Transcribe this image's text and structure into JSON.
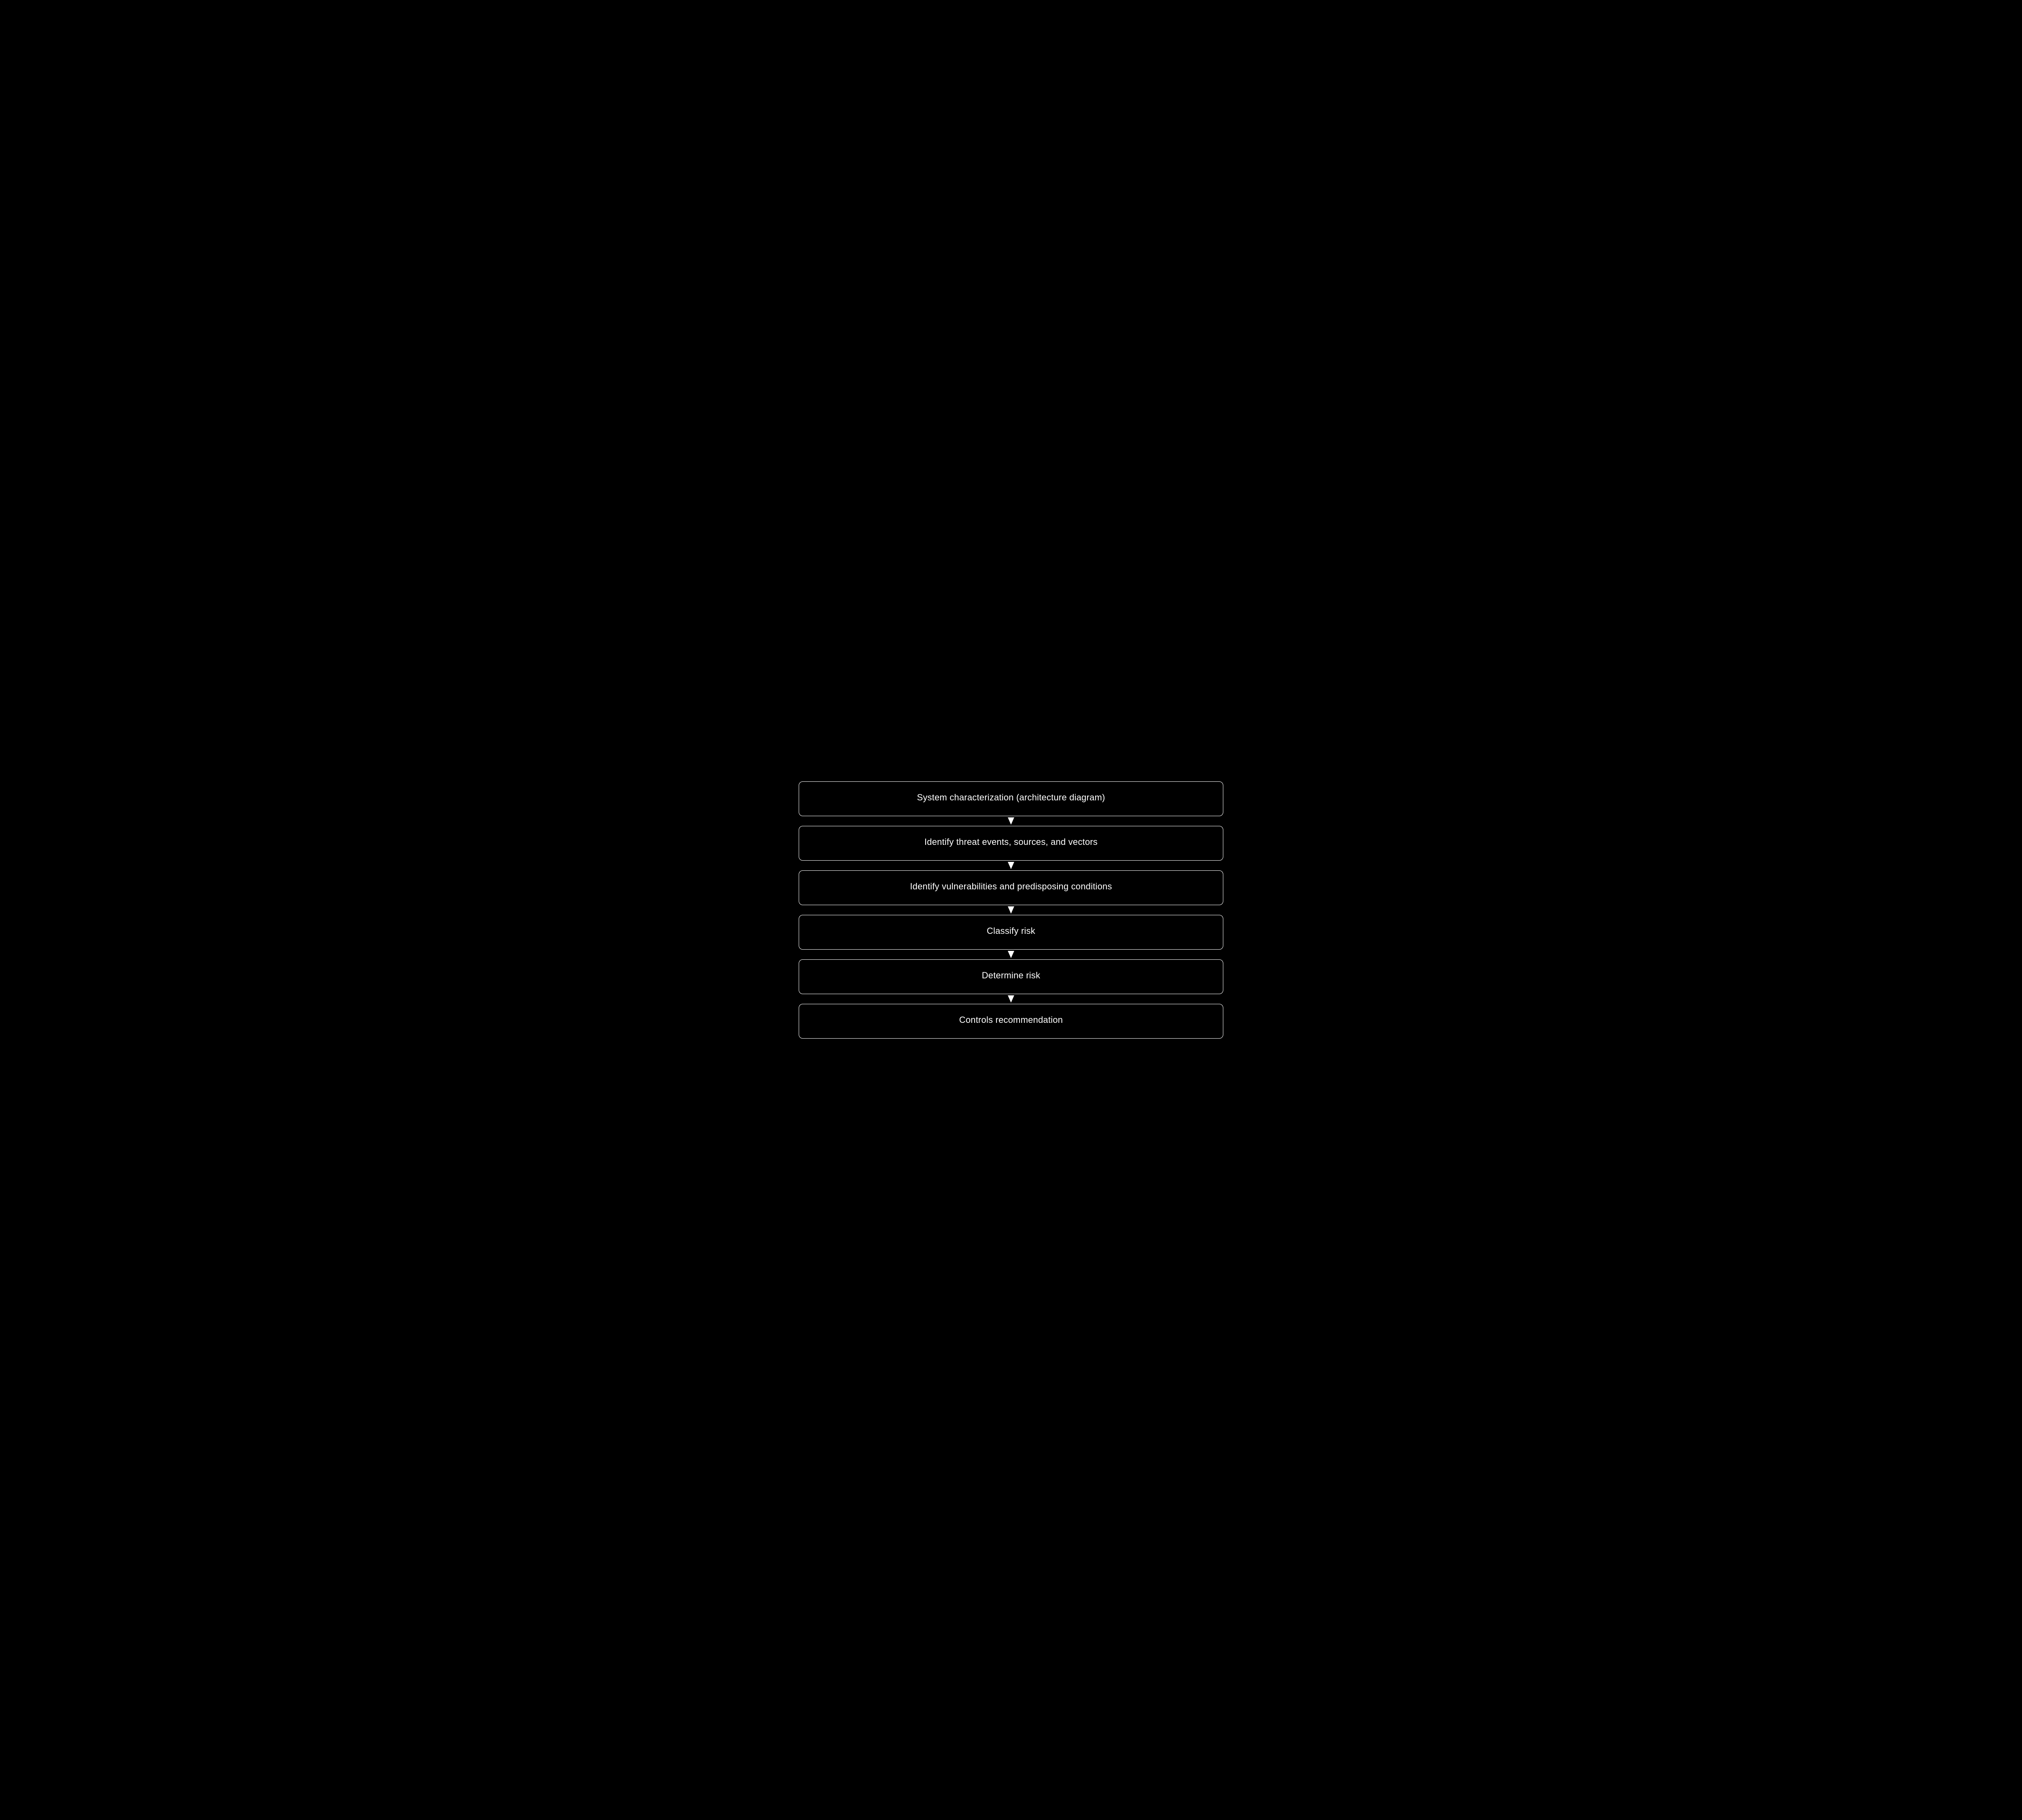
{
  "flowchart": {
    "type": "flowchart",
    "direction": "vertical",
    "background_color": "#000000",
    "node_background_color": "#000000",
    "node_border_color": "#ffffff",
    "node_border_width": 1,
    "node_border_radius": 10,
    "node_text_color": "#ffffff",
    "node_fontsize": 22,
    "node_font_weight": 400,
    "arrow_color": "#ffffff",
    "arrow_width": 16,
    "arrow_height": 18,
    "nodes": [
      {
        "id": "n1",
        "label": "System characterization (architecture diagram)"
      },
      {
        "id": "n2",
        "label": "Identify threat events, sources, and vectors"
      },
      {
        "id": "n3",
        "label": "Identify vulnerabilities and predisposing conditions"
      },
      {
        "id": "n4",
        "label": "Classify risk"
      },
      {
        "id": "n5",
        "label": "Determine risk"
      },
      {
        "id": "n6",
        "label": "Controls recommendation"
      }
    ],
    "edges": [
      {
        "from": "n1",
        "to": "n2"
      },
      {
        "from": "n2",
        "to": "n3"
      },
      {
        "from": "n3",
        "to": "n4"
      },
      {
        "from": "n4",
        "to": "n5"
      },
      {
        "from": "n5",
        "to": "n6"
      }
    ]
  }
}
